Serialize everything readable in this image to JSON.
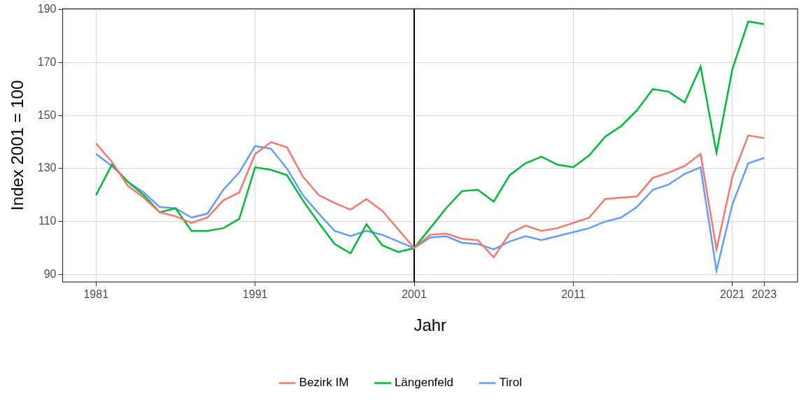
{
  "chart_data": {
    "type": "line",
    "x_label": "Jahr",
    "y_label": "Index 2001 = 100",
    "x": [
      1981,
      1982,
      1983,
      1984,
      1985,
      1986,
      1987,
      1988,
      1989,
      1990,
      1991,
      1992,
      1993,
      1994,
      1995,
      1996,
      1997,
      1998,
      1999,
      2000,
      2001,
      2002,
      2003,
      2004,
      2005,
      2006,
      2007,
      2008,
      2009,
      2010,
      2011,
      2012,
      2013,
      2014,
      2015,
      2016,
      2017,
      2018,
      2019,
      2020,
      2021,
      2022,
      2023
    ],
    "series": [
      {
        "name": "Bezirk IM",
        "color": "#F8766D",
        "values": [
          139.5,
          132.5,
          123.5,
          119,
          113.5,
          112,
          109.5,
          111.5,
          118,
          121,
          135.5,
          140,
          138,
          127,
          120,
          117,
          114.5,
          118.5,
          114,
          107,
          100,
          105,
          105.5,
          103.5,
          103,
          96.5,
          105.5,
          108.5,
          106.5,
          107.5,
          109.5,
          111.5,
          118.5,
          119,
          119.5,
          126.5,
          128.5,
          131,
          135.5,
          99.5,
          127,
          142.5,
          141.5
        ]
      },
      {
        "name": "Längenfeld",
        "color": "#00BA38",
        "values": [
          120,
          131.5,
          125,
          120,
          113.5,
          115,
          106.5,
          106.5,
          107.5,
          111,
          130.5,
          129.5,
          127.5,
          118,
          109.5,
          101.5,
          98,
          109,
          101,
          98.5,
          100,
          107.5,
          115,
          121.5,
          122,
          117.5,
          127.5,
          132,
          134.5,
          131.5,
          130.5,
          135,
          142,
          146,
          152,
          160,
          159,
          155,
          168.5,
          136,
          167.5,
          185.5,
          184.5
        ]
      },
      {
        "name": "Tirol",
        "color": "#619CFF",
        "values": [
          135.5,
          131,
          125,
          121,
          115.5,
          115,
          111.5,
          113,
          122,
          128.5,
          138.5,
          137.5,
          130,
          120,
          113,
          106.5,
          104.5,
          106.5,
          105,
          102.5,
          100,
          104,
          104.5,
          102,
          101.5,
          99.5,
          102.5,
          104.5,
          103,
          104.5,
          106,
          107.5,
          110,
          111.5,
          115.5,
          122,
          124,
          128,
          130.5,
          91.5,
          116.5,
          132,
          134
        ]
      }
    ],
    "xlim": [
      1978.9,
      2025.1
    ],
    "xticks": [
      1981,
      1991,
      2001,
      2011,
      2021,
      2023
    ],
    "ylim": [
      87.2,
      190.3
    ],
    "yticks": [
      90,
      110,
      130,
      150,
      170,
      190
    ],
    "vline": 2001,
    "grid": true,
    "legend": "bottom"
  }
}
